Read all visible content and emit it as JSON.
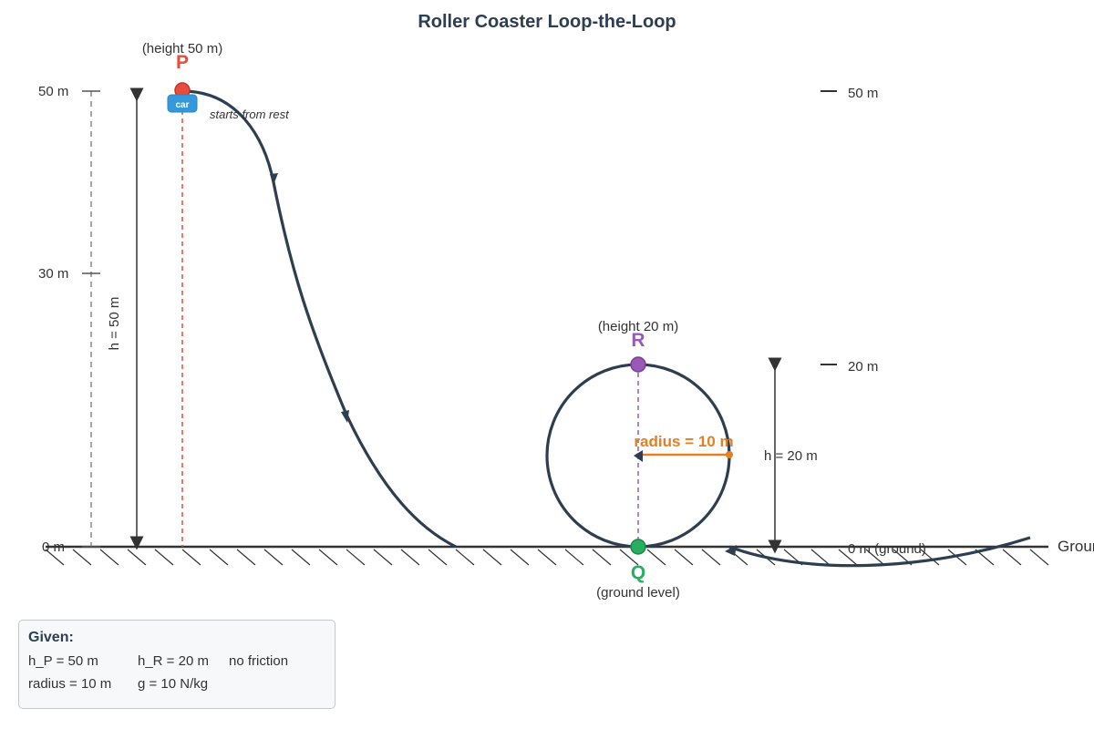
{
  "title": "Roller Coaster Loop-the-Loop",
  "left_scale": {
    "labels": [
      "50 m",
      "30 m",
      "0 m"
    ]
  },
  "right_scale": {
    "labels": [
      "50 m",
      "20 m",
      "0 m (ground)"
    ]
  },
  "ground_label": "Ground",
  "points": {
    "P": {
      "letter": "P",
      "caption": "(height 50 m)",
      "note": "starts from rest",
      "color": "#e74c3c"
    },
    "R": {
      "letter": "R",
      "caption": "(height 20 m)",
      "color": "#9b59b6"
    },
    "Q": {
      "letter": "Q",
      "caption": "(ground level)",
      "color": "#27ae60"
    }
  },
  "car_label": "car",
  "dims": {
    "h_left": "h = 50 m",
    "h_right": "h = 20 m",
    "radius": "radius = 10 m"
  },
  "given": {
    "title": "Given:",
    "h_P": "h_P = 50 m",
    "h_R": "h_R = 20 m",
    "friction": "no friction",
    "radius": "radius = 10 m",
    "g": "g = 10 N/kg"
  },
  "colors": {
    "track": "#2c3e50",
    "radius": "#e67e22",
    "car": "#3498db",
    "dashed_ref": "#888888"
  }
}
